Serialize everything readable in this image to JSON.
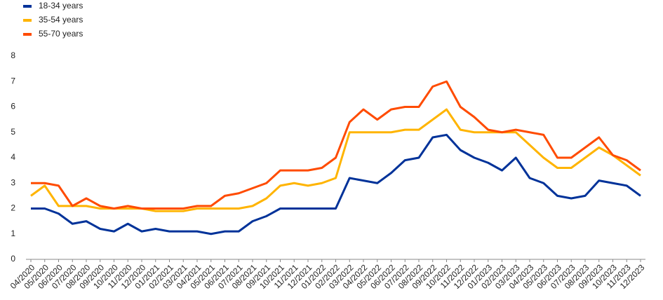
{
  "chart_data": {
    "type": "line",
    "categories": [
      "04/2020",
      "05/2020",
      "06/2020",
      "07/2020",
      "08/2020",
      "09/2020",
      "10/2020",
      "11/2020",
      "12/2020",
      "01/2021",
      "02/2021",
      "03/2021",
      "04/2021",
      "05/2021",
      "06/2021",
      "07/2021",
      "08/2021",
      "09/2021",
      "10/2021",
      "11/2021",
      "12/2021",
      "01/2022",
      "02/2022",
      "03/2022",
      "04/2022",
      "05/2022",
      "06/2022",
      "07/2022",
      "08/2022",
      "09/2022",
      "10/2022",
      "11/2022",
      "12/2022",
      "01/2023",
      "02/2023",
      "03/2023",
      "04/2023",
      "05/2023",
      "06/2023",
      "07/2023",
      "08/2023",
      "09/2023",
      "10/2023",
      "11/2023",
      "12/2023"
    ],
    "series": [
      {
        "name": "18-34 years",
        "color": "#003299",
        "values": [
          2.0,
          2.0,
          1.8,
          1.4,
          1.5,
          1.2,
          1.1,
          1.4,
          1.1,
          1.2,
          1.1,
          1.1,
          1.1,
          1.0,
          1.1,
          1.1,
          1.5,
          1.7,
          2.0,
          2.0,
          2.0,
          2.0,
          2.0,
          3.2,
          3.1,
          3.0,
          3.4,
          3.9,
          4.0,
          4.8,
          4.9,
          4.3,
          4.0,
          3.8,
          3.5,
          4.0,
          3.2,
          3.0,
          2.5,
          2.4,
          2.5,
          3.1,
          3.0,
          2.9,
          2.5
        ]
      },
      {
        "name": "35-54 years",
        "color": "#ffb400",
        "values": [
          2.5,
          2.9,
          2.1,
          2.1,
          2.1,
          2.0,
          2.0,
          2.0,
          2.0,
          1.9,
          1.9,
          1.9,
          2.0,
          2.0,
          2.0,
          2.0,
          2.1,
          2.4,
          2.9,
          3.0,
          2.9,
          3.0,
          3.2,
          5.0,
          5.0,
          5.0,
          5.0,
          5.1,
          5.1,
          5.5,
          5.9,
          5.1,
          5.0,
          5.0,
          5.0,
          5.0,
          4.5,
          4.0,
          3.6,
          3.6,
          4.0,
          4.4,
          4.1,
          3.7,
          3.3
        ]
      },
      {
        "name": "55-70 years",
        "color": "#ff4b00",
        "values": [
          3.0,
          3.0,
          2.9,
          2.1,
          2.4,
          2.1,
          2.0,
          2.1,
          2.0,
          2.0,
          2.0,
          2.0,
          2.1,
          2.1,
          2.5,
          2.6,
          2.8,
          3.0,
          3.5,
          3.5,
          3.5,
          3.6,
          4.0,
          5.4,
          5.9,
          5.5,
          5.9,
          6.0,
          6.0,
          6.8,
          7.0,
          6.0,
          5.6,
          5.1,
          5.0,
          5.1,
          5.0,
          4.9,
          4.0,
          4.0,
          4.4,
          4.8,
          4.1,
          3.9,
          3.5
        ]
      }
    ],
    "ylim": [
      0,
      8
    ],
    "yticks": [
      0,
      1,
      2,
      3,
      4,
      5,
      6,
      7,
      8
    ],
    "grid": false,
    "legend": "top-left"
  }
}
